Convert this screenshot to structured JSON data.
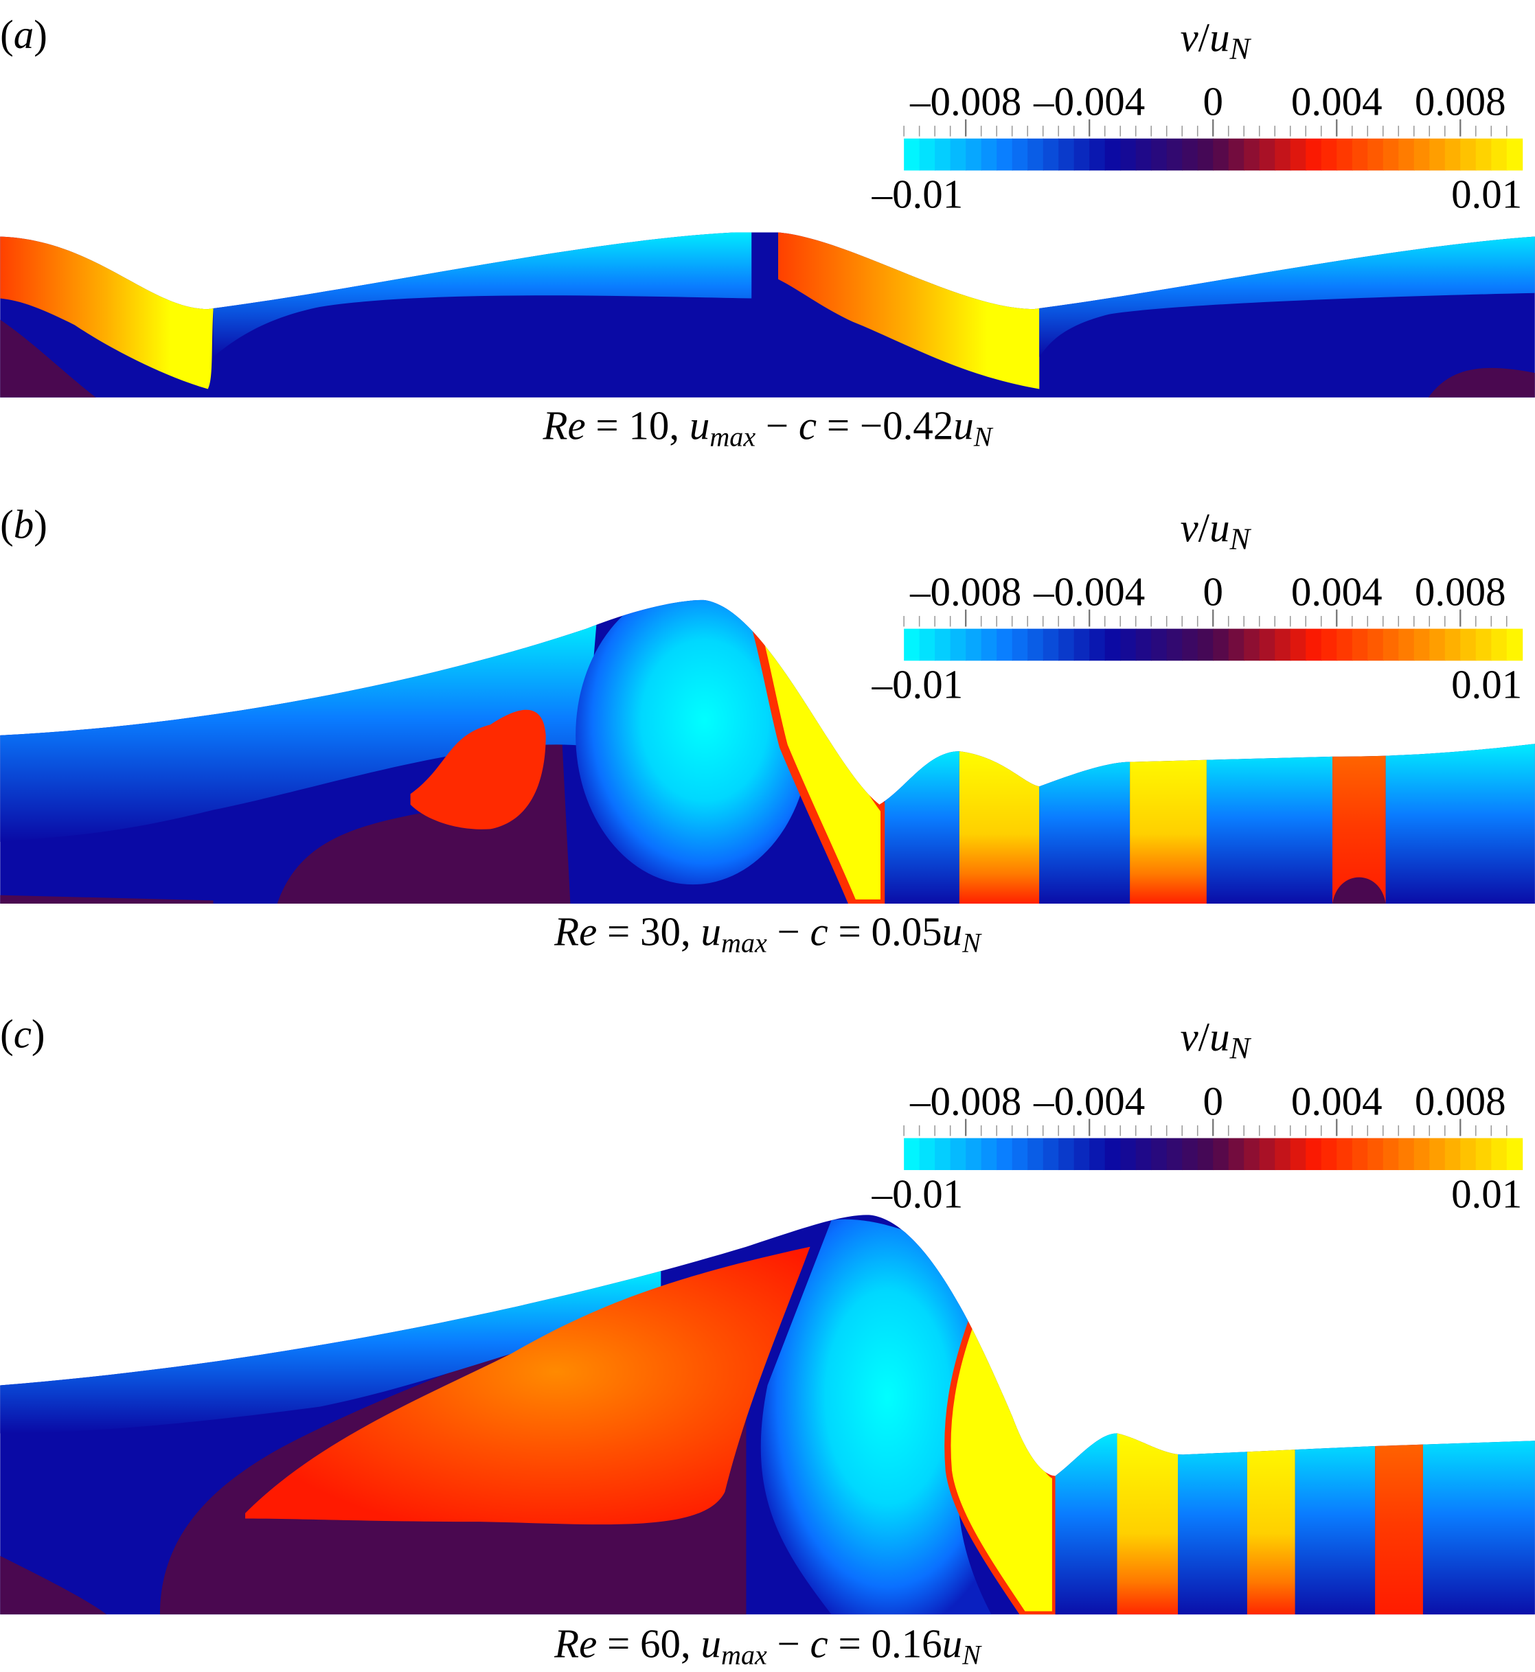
{
  "colormap": [
    "#00ffff",
    "#0a7cff",
    "#0a0aa5",
    "#4a0850",
    "#ff1a00",
    "#ff8a00",
    "#ffff00"
  ],
  "panels": [
    {
      "label": [
        {
          "text": "(",
          "style": "normal"
        },
        {
          "text": "a",
          "style": "italic"
        },
        {
          "text": ")",
          "style": "normal"
        }
      ],
      "colorbar": {
        "title": [
          {
            "text": "v",
            "style": "italic"
          },
          {
            "text": "/",
            "style": "normal"
          },
          {
            "text": "u",
            "style": "italic"
          },
          {
            "text": "N",
            "style": "sub"
          }
        ],
        "lim": [
          {
            "value": -0.01,
            "label": "–0.01"
          },
          {
            "value": 0.01,
            "label": "0.01"
          }
        ],
        "ticks": [
          {
            "value": -0.008,
            "label": "–0.008"
          },
          {
            "value": -0.004,
            "label": "–0.004"
          },
          0,
          {
            "value": 0.004,
            "label": "0.004"
          },
          {
            "value": 0.008,
            "label": "0.008"
          }
        ]
      },
      "caption": [
        {
          "text": "Re",
          "style": "italic"
        },
        {
          "text": " = 10, ",
          "style": "normal"
        },
        {
          "text": "u",
          "style": "italic"
        },
        {
          "text": "max",
          "style": "sub"
        },
        {
          "text": " − ",
          "style": "normal"
        },
        {
          "text": "c",
          "style": "italic"
        },
        {
          "text": " = −0.42",
          "style": "normal"
        },
        {
          "text": "u",
          "style": "italic"
        },
        {
          "text": "N",
          "style": "sub"
        }
      ]
    },
    {
      "label": [
        {
          "text": "(",
          "style": "normal"
        },
        {
          "text": "b",
          "style": "italic"
        },
        {
          "text": ")",
          "style": "normal"
        }
      ],
      "colorbar": {
        "title": [
          {
            "text": "v",
            "style": "italic"
          },
          {
            "text": "/",
            "style": "normal"
          },
          {
            "text": "u",
            "style": "italic"
          },
          {
            "text": "N",
            "style": "sub"
          }
        ],
        "lim": [
          {
            "value": -0.01,
            "label": "–0.01"
          },
          {
            "value": 0.01,
            "label": "0.01"
          }
        ],
        "ticks": [
          {
            "value": -0.008,
            "label": "–0.008"
          },
          {
            "value": -0.004,
            "label": "–0.004"
          },
          0,
          {
            "value": 0.004,
            "label": "0.004"
          },
          {
            "value": 0.008,
            "label": "0.008"
          }
        ]
      },
      "caption": [
        {
          "text": "Re",
          "style": "italic"
        },
        {
          "text": " = 30, ",
          "style": "normal"
        },
        {
          "text": "u",
          "style": "italic"
        },
        {
          "text": "max",
          "style": "sub"
        },
        {
          "text": " − ",
          "style": "normal"
        },
        {
          "text": "c",
          "style": "italic"
        },
        {
          "text": " = 0.05",
          "style": "normal"
        },
        {
          "text": "u",
          "style": "italic"
        },
        {
          "text": "N",
          "style": "sub"
        }
      ]
    },
    {
      "label": [
        {
          "text": "(",
          "style": "normal"
        },
        {
          "text": "c",
          "style": "italic"
        },
        {
          "text": ")",
          "style": "normal"
        }
      ],
      "colorbar": {
        "title": [
          {
            "text": "v",
            "style": "italic"
          },
          {
            "text": "/",
            "style": "normal"
          },
          {
            "text": "u",
            "style": "italic"
          },
          {
            "text": "N",
            "style": "sub"
          }
        ],
        "lim": [
          {
            "value": -0.01,
            "label": "–0.01"
          },
          {
            "value": 0.01,
            "label": "0.01"
          }
        ],
        "ticks": [
          {
            "value": -0.008,
            "label": "–0.008"
          },
          {
            "value": -0.004,
            "label": "–0.004"
          },
          0,
          {
            "value": 0.004,
            "label": "0.004"
          },
          {
            "value": 0.008,
            "label": "0.008"
          }
        ]
      },
      "caption": [
        {
          "text": "Re",
          "style": "italic"
        },
        {
          "text": " = 60, ",
          "style": "normal"
        },
        {
          "text": "u",
          "style": "italic"
        },
        {
          "text": "max",
          "style": "sub"
        },
        {
          "text": " − ",
          "style": "normal"
        },
        {
          "text": "c",
          "style": "italic"
        },
        {
          "text": " = 0.16",
          "style": "normal"
        },
        {
          "text": "u",
          "style": "italic"
        },
        {
          "text": "N",
          "style": "sub"
        }
      ]
    }
  ]
}
